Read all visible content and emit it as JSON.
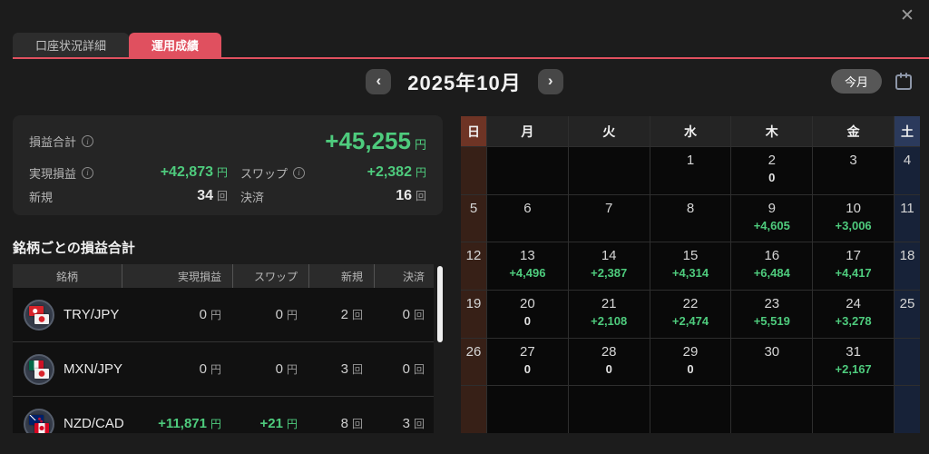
{
  "window": {
    "close_icon": "✕"
  },
  "tabs": [
    {
      "label": "口座状況詳細",
      "active": false
    },
    {
      "label": "運用成績",
      "active": true
    }
  ],
  "month_nav": {
    "prev_icon": "‹",
    "title": "2025年10月",
    "next_icon": "›",
    "this_month_label": "今月",
    "calendar_icon": "calendar-outline"
  },
  "summary": {
    "total_label": "損益合計",
    "total_value": "+45,255",
    "total_unit": "円",
    "realized_label": "実現損益",
    "realized_value": "+42,873",
    "realized_unit": "円",
    "swap_label": "スワップ",
    "swap_value": "+2,382",
    "swap_unit": "円",
    "new_label": "新規",
    "new_value": "34",
    "new_unit": "回",
    "settle_label": "決済",
    "settle_value": "16",
    "settle_unit": "回"
  },
  "symbol_section": {
    "title": "銘柄ごとの損益合計",
    "headers": [
      "銘柄",
      "実現損益",
      "スワップ",
      "新規",
      "決済"
    ],
    "rows": [
      {
        "symbol": "TRY/JPY",
        "flags": [
          "TRY",
          "JPY"
        ],
        "realized": "0",
        "realized_unit": "円",
        "swap": "0",
        "swap_unit": "円",
        "new": "2",
        "new_unit": "回",
        "settle": "0",
        "settle_unit": "回"
      },
      {
        "symbol": "MXN/JPY",
        "flags": [
          "MXN",
          "JPY"
        ],
        "realized": "0",
        "realized_unit": "円",
        "swap": "0",
        "swap_unit": "円",
        "new": "3",
        "new_unit": "回",
        "settle": "0",
        "settle_unit": "回"
      },
      {
        "symbol": "NZD/CAD",
        "flags": [
          "NZD",
          "CAD"
        ],
        "realized": "+11,871",
        "realized_unit": "円",
        "swap": "+21",
        "swap_unit": "円",
        "new": "8",
        "new_unit": "回",
        "settle": "3",
        "settle_unit": "回"
      }
    ]
  },
  "calendar": {
    "weekdays": [
      "日",
      "月",
      "火",
      "水",
      "木",
      "金",
      "土"
    ],
    "weeks": [
      [
        {
          "d": "",
          "v": ""
        },
        {
          "d": "",
          "v": ""
        },
        {
          "d": "",
          "v": ""
        },
        {
          "d": "1",
          "v": ""
        },
        {
          "d": "2",
          "v": "0"
        },
        {
          "d": "3",
          "v": ""
        },
        {
          "d": "4",
          "v": ""
        }
      ],
      [
        {
          "d": "5",
          "v": ""
        },
        {
          "d": "6",
          "v": ""
        },
        {
          "d": "7",
          "v": ""
        },
        {
          "d": "8",
          "v": ""
        },
        {
          "d": "9",
          "v": "+4,605"
        },
        {
          "d": "10",
          "v": "+3,006"
        },
        {
          "d": "11",
          "v": ""
        }
      ],
      [
        {
          "d": "12",
          "v": ""
        },
        {
          "d": "13",
          "v": "+4,496"
        },
        {
          "d": "14",
          "v": "+2,387"
        },
        {
          "d": "15",
          "v": "+4,314"
        },
        {
          "d": "16",
          "v": "+6,484"
        },
        {
          "d": "17",
          "v": "+4,417"
        },
        {
          "d": "18",
          "v": ""
        }
      ],
      [
        {
          "d": "19",
          "v": ""
        },
        {
          "d": "20",
          "v": "0"
        },
        {
          "d": "21",
          "v": "+2,108"
        },
        {
          "d": "22",
          "v": "+2,474"
        },
        {
          "d": "23",
          "v": "+5,519"
        },
        {
          "d": "24",
          "v": "+3,278"
        },
        {
          "d": "25",
          "v": ""
        }
      ],
      [
        {
          "d": "26",
          "v": ""
        },
        {
          "d": "27",
          "v": "0"
        },
        {
          "d": "28",
          "v": "0"
        },
        {
          "d": "29",
          "v": "0"
        },
        {
          "d": "30",
          "v": ""
        },
        {
          "d": "31",
          "v": "+2,167"
        },
        {
          "d": "",
          "v": ""
        }
      ],
      [
        {
          "d": "",
          "v": ""
        },
        {
          "d": "",
          "v": ""
        },
        {
          "d": "",
          "v": ""
        },
        {
          "d": "",
          "v": ""
        },
        {
          "d": "",
          "v": ""
        },
        {
          "d": "",
          "v": ""
        },
        {
          "d": "",
          "v": ""
        }
      ]
    ]
  },
  "colors": {
    "accent_red": "#e0505f",
    "profit_green": "#4ecb7d",
    "sunday_red": "#6e3425",
    "saturday_blue": "#2b3a5c"
  }
}
